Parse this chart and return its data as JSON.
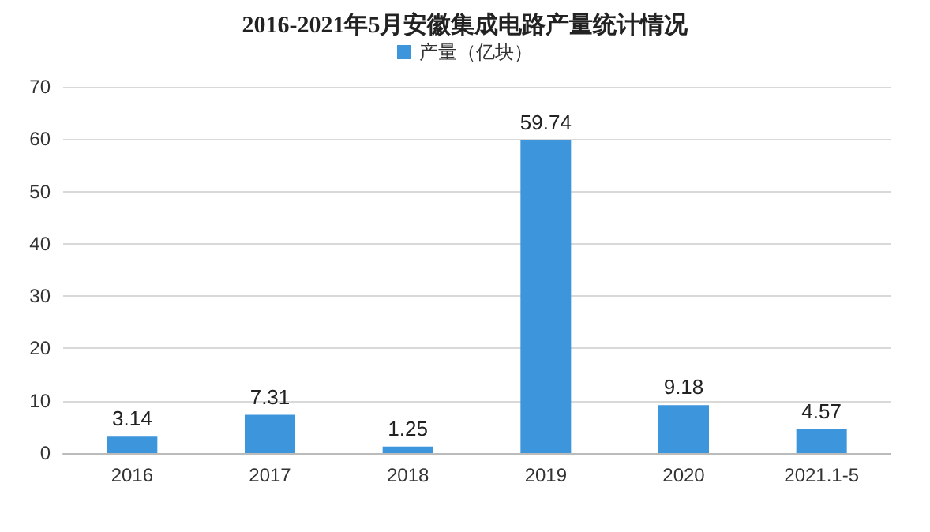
{
  "chart_data": {
    "type": "bar",
    "title": "2016-2021年5月安徽集成电路产量统计情况",
    "categories": [
      "2016",
      "2017",
      "2018",
      "2019",
      "2020",
      "2021.1-5"
    ],
    "series": [
      {
        "name": "产量（亿块）",
        "color": "#3d95dc",
        "values": [
          3.14,
          7.31,
          1.25,
          59.74,
          9.18,
          4.57
        ]
      }
    ],
    "ylim": [
      0,
      70
    ],
    "yticks": [
      0,
      10,
      20,
      30,
      40,
      50,
      60,
      70
    ],
    "grid": "y",
    "legend": "top",
    "data_labels": true
  }
}
